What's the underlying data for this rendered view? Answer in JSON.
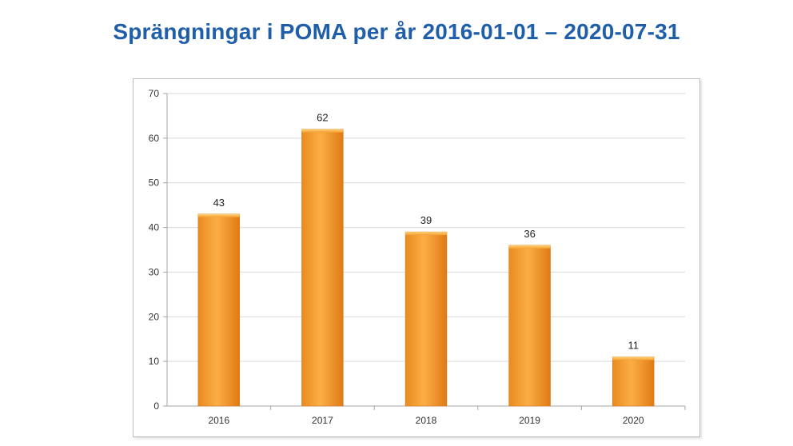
{
  "title": "Sprängningar i POMA per år 2016-01-01 – 2020-07-31",
  "colors": {
    "title": "#1f5faa",
    "bar_light": "#f9a83a",
    "bar_dark": "#e07a14",
    "grid": "#d9d9d9",
    "axis": "#a6a6a6"
  },
  "chart_data": {
    "type": "bar",
    "title": "",
    "xlabel": "",
    "ylabel": "",
    "categories": [
      "2016",
      "2017",
      "2018",
      "2019",
      "2020"
    ],
    "values": [
      43,
      62,
      39,
      36,
      11
    ],
    "data_labels": [
      "43",
      "62",
      "39",
      "36",
      "11"
    ],
    "ylim": [
      0,
      70
    ],
    "yticks": [
      "0",
      "10",
      "20",
      "30",
      "40",
      "50",
      "60",
      "70"
    ],
    "grid": true,
    "legend": "none"
  }
}
